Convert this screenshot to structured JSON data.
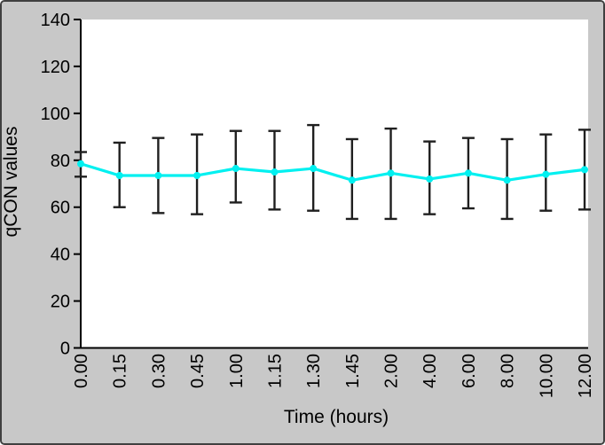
{
  "figure": {
    "background_color": "#c8c8c8",
    "border_color": "#404040",
    "plot_background": "#ffffff",
    "axis_color": "#000000",
    "text_color": "#000000"
  },
  "chart_data": {
    "type": "line",
    "title": "",
    "xlabel": "Time (hours)",
    "ylabel": "qCON values",
    "x_tick_labels": [
      "0.00",
      "0.15",
      "0.30",
      "0.45",
      "1.00",
      "1.15",
      "1.30",
      "1.45",
      "2.00",
      "4.00",
      "6.00",
      "8.00",
      "10.00",
      "12.00"
    ],
    "y_ticks": [
      0,
      20,
      40,
      60,
      80,
      100,
      120,
      140
    ],
    "ylim": [
      0,
      140
    ],
    "grid": false,
    "legend": "none",
    "series": [
      {
        "name": "qCON",
        "line_color": "#00f0f0",
        "marker": "circle",
        "error_bar_color": "#1f1f1f",
        "values": [
          78.5,
          73.5,
          73.5,
          73.5,
          76.5,
          75,
          76.5,
          71.5,
          74.5,
          72,
          74.5,
          71.5,
          74,
          76
        ],
        "error_upper": [
          83.5,
          87.5,
          89.5,
          91,
          92.5,
          92.5,
          95,
          89,
          93.5,
          88,
          89.5,
          89,
          91,
          93
        ],
        "error_lower": [
          73,
          60,
          57.5,
          57,
          62,
          59,
          58.5,
          55,
          55,
          57,
          59.5,
          55,
          58.5,
          59
        ]
      }
    ]
  }
}
